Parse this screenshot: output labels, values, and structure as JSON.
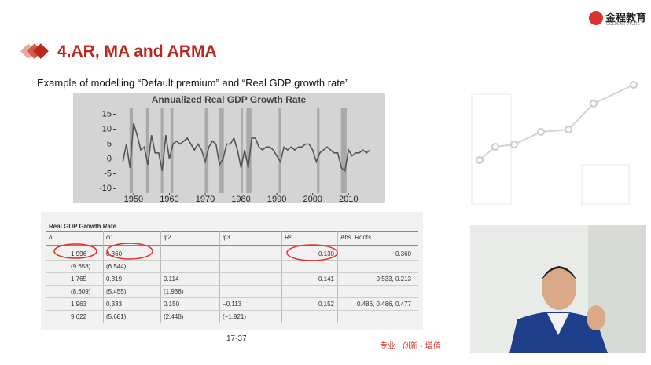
{
  "header": {
    "title": "4.AR, MA and ARMA",
    "subtitle": "Example of modelling “Default premium” and “Real GDP growth rate”",
    "logo": "金程教育",
    "logo_sub": "GOLDEN FUTURE"
  },
  "chart_data": {
    "type": "line",
    "title": "Annualized Real GDP Growth Rate",
    "color": "#555555",
    "band_color": "#a9a9a9",
    "background": "#d4d4d4",
    "x": [
      1947,
      1948,
      1949,
      1950,
      1951,
      1952,
      1953,
      1954,
      1955,
      1956,
      1957,
      1958,
      1959,
      1960,
      1961,
      1962,
      1963,
      1964,
      1965,
      1966,
      1967,
      1968,
      1969,
      1970,
      1971,
      1972,
      1973,
      1974,
      1975,
      1976,
      1977,
      1978,
      1979,
      1980,
      1981,
      1982,
      1983,
      1984,
      1985,
      1986,
      1987,
      1988,
      1989,
      1990,
      1991,
      1992,
      1993,
      1994,
      1995,
      1996,
      1997,
      1998,
      1999,
      2000,
      2001,
      2002,
      2003,
      2004,
      2005,
      2006,
      2007,
      2008,
      2009,
      2010,
      2011,
      2012,
      2013,
      2014,
      2015,
      2016
    ],
    "values": [
      -1,
      5,
      -3,
      12,
      8,
      3,
      4,
      -2,
      8,
      2,
      2,
      -4,
      8,
      0,
      5,
      6,
      5,
      6,
      7,
      5,
      3,
      5,
      3,
      -1,
      4,
      6,
      5,
      -2,
      0,
      5,
      5,
      7,
      3,
      -3,
      3,
      -3,
      7,
      7,
      4,
      3,
      4,
      4,
      3,
      1,
      -1,
      4,
      3,
      4,
      3,
      4,
      4,
      5,
      5,
      3,
      -1,
      2,
      3,
      4,
      3,
      2,
      2,
      -3,
      -4,
      3,
      1,
      2,
      2,
      3,
      2,
      3
    ],
    "shaded_periods": [
      [
        1948.9,
        1949.8
      ],
      [
        1953.5,
        1954.4
      ],
      [
        1957.6,
        1958.3
      ],
      [
        1960.3,
        1961.1
      ],
      [
        1969.9,
        1970.9
      ],
      [
        1973.9,
        1975.2
      ],
      [
        1980.0,
        1980.5
      ],
      [
        1981.5,
        1982.9
      ],
      [
        1990.5,
        1991.2
      ],
      [
        2001.2,
        2001.9
      ],
      [
        2007.9,
        2009.5
      ]
    ],
    "xlim": [
      1945.2,
      2018.5
    ],
    "ylim": [
      -11.5,
      17
    ],
    "xticks": [
      1950,
      1960,
      1970,
      1980,
      1990,
      2000,
      2010
    ],
    "yticks": [
      -10,
      -5,
      0,
      5,
      10,
      15
    ]
  },
  "table": {
    "title": "Real GDP Growth Rate",
    "header": [
      "δ",
      "φ1",
      "φ2",
      "φ3",
      "R²",
      "Abs. Roots"
    ],
    "rows": [
      [
        "1.996",
        "0.360",
        null,
        null,
        "0.130",
        "0.360"
      ],
      [
        "(9.658)",
        "(6.544)",
        null,
        null,
        null,
        null
      ],
      [
        "1.765",
        "0.319",
        "0.114",
        null,
        "0.141",
        "0.533, 0.213"
      ],
      [
        "(8.609)",
        "(5.455)",
        "(1.938)",
        null,
        null,
        null
      ],
      [
        "1.963",
        "0.333",
        "0.150",
        "−0.113",
        "0.152",
        "0.486, 0.486, 0.477"
      ],
      [
        "9.622",
        "(5.681)",
        "(2.448)",
        "(−1.921)",
        null,
        null
      ]
    ]
  },
  "footer": {
    "page": "17-37",
    "slogan": "专业 · 创新 · 增值"
  }
}
